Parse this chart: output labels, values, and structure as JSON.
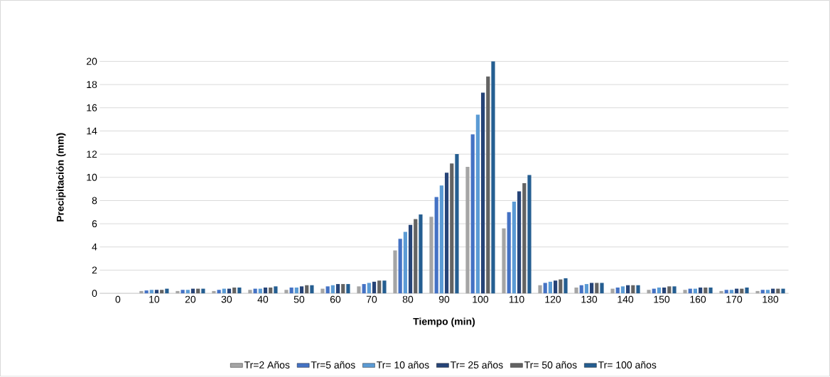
{
  "chart_data": {
    "type": "bar",
    "xlabel": "Tiempo (min)",
    "ylabel": "Precipitación (mm)",
    "categories": [
      "0",
      "10",
      "20",
      "30",
      "40",
      "50",
      "60",
      "70",
      "80",
      "90",
      "100",
      "110",
      "120",
      "130",
      "140",
      "150",
      "160",
      "170",
      "180"
    ],
    "series": [
      {
        "name": "Tr=2 Años",
        "color": "#a5a5a5",
        "values": [
          0,
          0.2,
          0.2,
          0.2,
          0.3,
          0.3,
          0.4,
          0.6,
          3.7,
          6.6,
          10.9,
          5.6,
          0.7,
          0.5,
          0.4,
          0.3,
          0.3,
          0.2,
          0.2
        ]
      },
      {
        "name": "Tr=5 años",
        "color": "#4472c4",
        "values": [
          0,
          0.25,
          0.3,
          0.3,
          0.4,
          0.5,
          0.6,
          0.8,
          4.7,
          8.3,
          13.7,
          7.0,
          0.9,
          0.7,
          0.5,
          0.4,
          0.4,
          0.3,
          0.3
        ]
      },
      {
        "name": "Tr= 10 años",
        "color": "#5b9bd5",
        "values": [
          0,
          0.3,
          0.3,
          0.4,
          0.4,
          0.5,
          0.7,
          0.9,
          5.3,
          9.3,
          15.4,
          7.9,
          1.0,
          0.8,
          0.6,
          0.5,
          0.4,
          0.3,
          0.3
        ]
      },
      {
        "name": "Tr= 25 años",
        "color": "#264478",
        "values": [
          0,
          0.3,
          0.4,
          0.4,
          0.5,
          0.6,
          0.8,
          1.0,
          5.9,
          10.4,
          17.3,
          8.8,
          1.1,
          0.9,
          0.7,
          0.5,
          0.5,
          0.4,
          0.4
        ]
      },
      {
        "name": "Tr= 50 años",
        "color": "#636363",
        "values": [
          0,
          0.3,
          0.4,
          0.5,
          0.5,
          0.7,
          0.8,
          1.1,
          6.4,
          11.2,
          18.7,
          9.5,
          1.2,
          0.9,
          0.7,
          0.6,
          0.5,
          0.4,
          0.4
        ]
      },
      {
        "name": "Tr= 100 años",
        "color": "#255e91",
        "values": [
          0,
          0.4,
          0.4,
          0.5,
          0.6,
          0.7,
          0.8,
          1.1,
          6.8,
          12.0,
          20.0,
          10.2,
          1.3,
          0.9,
          0.7,
          0.6,
          0.5,
          0.5,
          0.4
        ]
      }
    ],
    "ylim": [
      0,
      20
    ],
    "yticks": [
      0,
      2,
      4,
      6,
      8,
      10,
      12,
      14,
      16,
      18,
      20
    ],
    "grid": "y",
    "legend": "bottom"
  }
}
